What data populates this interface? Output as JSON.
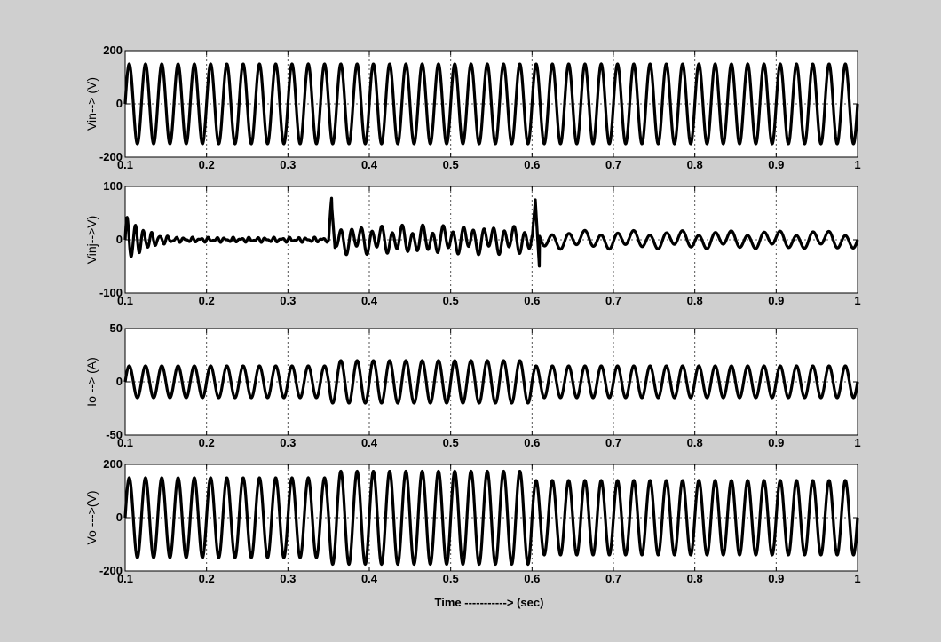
{
  "window": {
    "background": "#cfcfcf",
    "axes_background": "#ffffff",
    "line_color": "#000000",
    "grid_color": "#555555"
  },
  "xlabel": "Time -----------> (sec)",
  "x_tick_labels": [
    "0.1",
    "0.2",
    "0.3",
    "0.4",
    "0.5",
    "0.6",
    "0.7",
    "0.8",
    "0.9",
    "1"
  ],
  "chart_data": [
    {
      "type": "line",
      "ylabel": "Vin--> (V)",
      "xlim": [
        0.1,
        1
      ],
      "ylim": [
        -200,
        200
      ],
      "y_tick_labels": [
        "200",
        "0",
        "-200"
      ],
      "grid": true,
      "signal": {
        "frequency_hz": 50,
        "amplitude": 150
      },
      "series": [
        {
          "x": [
            0.1,
            0.105,
            0.11,
            0.115,
            0.12,
            0.2,
            0.3,
            0.4,
            0.5,
            0.6,
            0.7,
            0.8,
            0.9,
            1.0
          ],
          "y": [
            0,
            150,
            0,
            -150,
            0,
            0,
            0,
            0,
            0,
            0,
            0,
            0,
            0,
            0
          ]
        }
      ]
    },
    {
      "type": "line",
      "ylabel": "Vinj-->V)",
      "xlim": [
        0.1,
        1
      ],
      "ylim": [
        -100,
        100
      ],
      "y_tick_labels": [
        "100",
        "0",
        "-100"
      ],
      "grid": true,
      "segments": [
        {
          "t_start": 0.1,
          "t_end": 0.35,
          "amplitude_start": 45,
          "decay": 40,
          "floor": 3
        },
        {
          "t_start": 0.35,
          "t_end": 0.6,
          "amplitude": 20,
          "spike_at_start": 60,
          "spike_low": -20
        },
        {
          "t_start": 0.6,
          "t_end": 1.0,
          "amplitude": 13,
          "spike_at_start": 75,
          "spike_low": -52
        }
      ],
      "series": [
        {
          "x": [
            0.1,
            0.101,
            0.104,
            0.2,
            0.3,
            0.35,
            0.355,
            0.358,
            0.5,
            0.6,
            0.603,
            0.605,
            0.7,
            0.8,
            0.9,
            1.0
          ],
          "y": [
            0,
            48,
            -30,
            2,
            3,
            0,
            58,
            -28,
            18,
            0,
            74,
            -52,
            12,
            12,
            12,
            -5
          ]
        }
      ]
    },
    {
      "type": "line",
      "ylabel": "Io --> (A)",
      "xlim": [
        0.1,
        1
      ],
      "ylim": [
        -50,
        50
      ],
      "y_tick_labels": [
        "50",
        "0",
        "-50"
      ],
      "grid": true,
      "segments": [
        {
          "t_start": 0.1,
          "t_end": 0.35,
          "amplitude": 15
        },
        {
          "t_start": 0.35,
          "t_end": 0.6,
          "amplitude": 20
        },
        {
          "t_start": 0.6,
          "t_end": 1.0,
          "amplitude": 15
        }
      ],
      "series": [
        {
          "x": [
            0.1,
            0.2,
            0.3,
            0.35,
            0.36,
            0.4,
            0.5,
            0.6,
            0.61,
            0.7,
            0.8,
            0.9,
            1.0
          ],
          "y": [
            0,
            15,
            -15,
            0,
            -20,
            20,
            20,
            0,
            8,
            15,
            15,
            15,
            -12
          ]
        }
      ]
    },
    {
      "type": "line",
      "ylabel": "Vo --->(V)",
      "xlim": [
        0.1,
        1
      ],
      "ylim": [
        -200,
        200
      ],
      "y_tick_labels": [
        "200",
        "0",
        "-200"
      ],
      "grid": true,
      "segments": [
        {
          "t_start": 0.1,
          "t_end": 0.35,
          "amplitude": 150
        },
        {
          "t_start": 0.35,
          "t_end": 0.6,
          "amplitude": 175
        },
        {
          "t_start": 0.6,
          "t_end": 1.0,
          "amplitude": 140
        }
      ],
      "series": [
        {
          "x": [
            0.1,
            0.2,
            0.3,
            0.35,
            0.355,
            0.36,
            0.4,
            0.5,
            0.6,
            0.61,
            0.7,
            0.8,
            0.9,
            1.0
          ],
          "y": [
            0,
            150,
            -150,
            0,
            -195,
            185,
            175,
            -175,
            0,
            95,
            140,
            140,
            140,
            -130
          ]
        }
      ]
    }
  ]
}
